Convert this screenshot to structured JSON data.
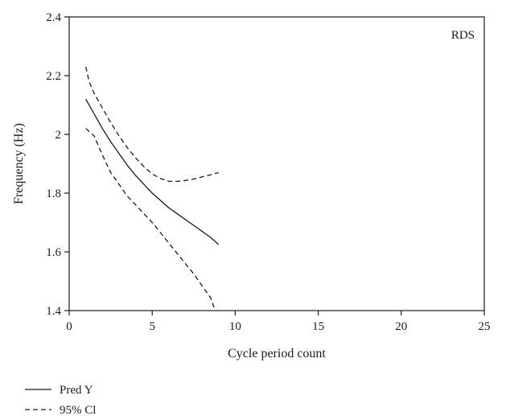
{
  "chart_data": {
    "type": "line",
    "annotation": "RDS",
    "xlabel": "Cycle period count",
    "ylabel": "Frequency (Hz)",
    "xlim": [
      0,
      25
    ],
    "ylim": [
      1.4,
      2.4
    ],
    "x_ticks": [
      0,
      5,
      10,
      15,
      20,
      25
    ],
    "x_tick_labels": [
      "0",
      "5",
      "10",
      "15",
      "20",
      "25"
    ],
    "y_ticks": [
      1.4,
      1.6,
      1.8,
      2.0,
      2.2,
      2.4
    ],
    "y_tick_labels": [
      "1.4",
      "1.6",
      "1.8",
      "2",
      "2.2",
      "2.4"
    ],
    "grid": false,
    "legend_position": "bottom-left",
    "series": [
      {
        "name": "Pred Y",
        "style": "solid",
        "color": "#1a1a1a",
        "x": [
          1,
          1.5,
          2,
          2.5,
          3,
          3.5,
          4,
          4.5,
          5,
          5.5,
          6,
          6.5,
          7,
          7.5,
          8,
          8.5,
          9
        ],
        "y": [
          2.12,
          2.07,
          2.02,
          1.975,
          1.935,
          1.895,
          1.86,
          1.83,
          1.8,
          1.775,
          1.75,
          1.73,
          1.71,
          1.69,
          1.67,
          1.65,
          1.625
        ]
      },
      {
        "name": "95% Cl",
        "style": "dashed",
        "color": "#1a1a1a",
        "x": [
          1,
          1.2,
          1.5,
          2,
          2.5,
          3,
          3.5,
          4,
          4.5,
          5,
          5.5,
          6,
          6.5,
          7,
          7.5,
          8,
          8.5,
          9
        ],
        "y": [
          2.23,
          2.18,
          2.14,
          2.09,
          2.04,
          1.995,
          1.955,
          1.92,
          1.89,
          1.865,
          1.85,
          1.84,
          1.84,
          1.843,
          1.848,
          1.855,
          1.862,
          1.87
        ]
      },
      {
        "name": "",
        "legend_group": "95% Cl",
        "style": "dashed",
        "color": "#1a1a1a",
        "x": [
          1,
          1.5,
          2,
          2.5,
          3,
          3.5,
          4,
          4.5,
          5,
          5.5,
          6,
          6.5,
          7,
          7.5,
          8,
          8.5,
          8.8
        ],
        "y": [
          2.02,
          1.995,
          1.93,
          1.87,
          1.83,
          1.79,
          1.76,
          1.73,
          1.7,
          1.665,
          1.63,
          1.595,
          1.56,
          1.525,
          1.485,
          1.445,
          1.4
        ]
      }
    ],
    "legend": [
      {
        "label": "Pred Y",
        "style": "solid"
      },
      {
        "label": "95% Cl",
        "style": "dashed"
      }
    ]
  }
}
